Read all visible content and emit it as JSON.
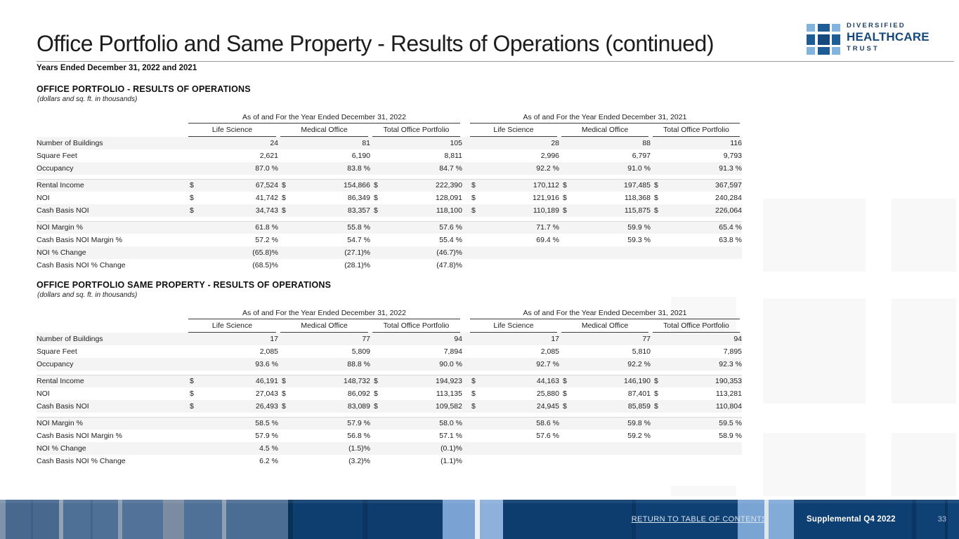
{
  "page": {
    "title": "Office Portfolio and Same Property - Results of Operations (continued)",
    "subtitle": "Years Ended December 31, 2022 and 2021"
  },
  "logo": {
    "line1": "DIVERSIFIED",
    "line2": "HEALTHCARE",
    "line3": "TRUST",
    "mark": "blue-squares-grid-icon",
    "colors": {
      "brand_dark": "#17497c",
      "brand_light": "#82b4de",
      "footer_navy": "#0e3f73"
    }
  },
  "tables": [
    {
      "heading": "OFFICE PORTFOLIO -  RESULTS OF OPERATIONS",
      "note": "(dollars and sq. ft. in thousands)",
      "year_headers": [
        "As of and For the Year Ended December 31, 2022",
        "As of and For the Year Ended December 31, 2021"
      ],
      "column_headers": [
        "Life Science",
        "Medical Office",
        "Total Office Portfolio",
        "Life Science",
        "Medical Office",
        "Total Office Portfolio"
      ],
      "groups": [
        {
          "dollar": false,
          "rows": [
            {
              "label": "Number of Buildings",
              "cells": [
                "24",
                "81",
                "105",
                "28",
                "88",
                "116"
              ]
            },
            {
              "label": "Square Feet",
              "cells": [
                "2,621",
                "6,190",
                "8,811",
                "2,996",
                "6,797",
                "9,793"
              ]
            },
            {
              "label": "Occupancy",
              "cells": [
                "87.0 %",
                "83.8 %",
                "84.7 %",
                "92.2 %",
                "91.0 %",
                "91.3 %"
              ]
            }
          ]
        },
        {
          "dollar": true,
          "rows": [
            {
              "label": "Rental Income",
              "cells": [
                "67,524",
                "154,866",
                "222,390",
                "170,112",
                "197,485",
                "367,597"
              ]
            },
            {
              "label": "NOI",
              "cells": [
                "41,742",
                "86,349",
                "128,091",
                "121,916",
                "118,368",
                "240,284"
              ]
            },
            {
              "label": "Cash Basis NOI",
              "cells": [
                "34,743",
                "83,357",
                "118,100",
                "110,189",
                "115,875",
                "226,064"
              ]
            }
          ]
        },
        {
          "dollar": false,
          "rows": [
            {
              "label": "NOI Margin %",
              "cells": [
                "61.8 %",
                "55.8 %",
                "57.6 %",
                "71.7 %",
                "59.9 %",
                "65.4 %"
              ]
            },
            {
              "label": "Cash Basis NOI Margin %",
              "cells": [
                "57.2 %",
                "54.7 %",
                "55.4 %",
                "69.4 %",
                "59.3 %",
                "63.8 %"
              ]
            },
            {
              "label": "NOI % Change",
              "cells": [
                "(65.8)%",
                "(27.1)%",
                "(46.7)%",
                "",
                "",
                ""
              ]
            },
            {
              "label": "Cash Basis NOI % Change",
              "cells": [
                "(68.5)%",
                "(28.1)%",
                "(47.8)%",
                "",
                "",
                ""
              ]
            }
          ]
        }
      ]
    },
    {
      "heading": "OFFICE PORTFOLIO SAME PROPERTY - RESULTS OF OPERATIONS",
      "note": "(dollars and sq. ft. in thousands)",
      "year_headers": [
        "As of and For the Year Ended December 31, 2022",
        "As of and For the Year Ended December 31, 2021"
      ],
      "column_headers": [
        "Life Science",
        "Medical Office",
        "Total Office Portfolio",
        "Life Science",
        "Medical Office",
        "Total Office Portfolio"
      ],
      "groups": [
        {
          "dollar": false,
          "rows": [
            {
              "label": "Number of Buildings",
              "cells": [
                "17",
                "77",
                "94",
                "17",
                "77",
                "94"
              ]
            },
            {
              "label": "Square Feet",
              "cells": [
                "2,085",
                "5,809",
                "7,894",
                "2,085",
                "5,810",
                "7,895"
              ]
            },
            {
              "label": "Occupancy",
              "cells": [
                "93.6 %",
                "88.8 %",
                "90.0 %",
                "92.7 %",
                "92.2 %",
                "92.3 %"
              ]
            }
          ]
        },
        {
          "dollar": true,
          "rows": [
            {
              "label": "Rental Income",
              "cells": [
                "46,191",
                "148,732",
                "194,923",
                "44,163",
                "146,190",
                "190,353"
              ]
            },
            {
              "label": "NOI",
              "cells": [
                "27,043",
                "86,092",
                "113,135",
                "25,880",
                "87,401",
                "113,281"
              ]
            },
            {
              "label": "Cash Basis NOI",
              "cells": [
                "26,493",
                "83,089",
                "109,582",
                "24,945",
                "85,859",
                "110,804"
              ]
            }
          ]
        },
        {
          "dollar": false,
          "rows": [
            {
              "label": "NOI Margin %",
              "cells": [
                "58.5 %",
                "57.9 %",
                "58.0 %",
                "58.6 %",
                "59.8 %",
                "59.5 %"
              ]
            },
            {
              "label": "Cash Basis NOI Margin %",
              "cells": [
                "57.9 %",
                "56.8 %",
                "57.1 %",
                "57.6 %",
                "59.2 %",
                "58.9 %"
              ]
            },
            {
              "label": "NOI % Change",
              "cells": [
                "4.5 %",
                "(1.5)%",
                "(0.1)%",
                "",
                "",
                ""
              ]
            },
            {
              "label": "Cash Basis NOI % Change",
              "cells": [
                "6.2 %",
                "(3.2)%",
                "(1.1)%",
                "",
                "",
                ""
              ]
            }
          ]
        }
      ]
    }
  ],
  "footer": {
    "link": "RETURN TO TABLE OF CONTENTS",
    "label": "Supplemental Q4 2022",
    "page_number": "33"
  }
}
